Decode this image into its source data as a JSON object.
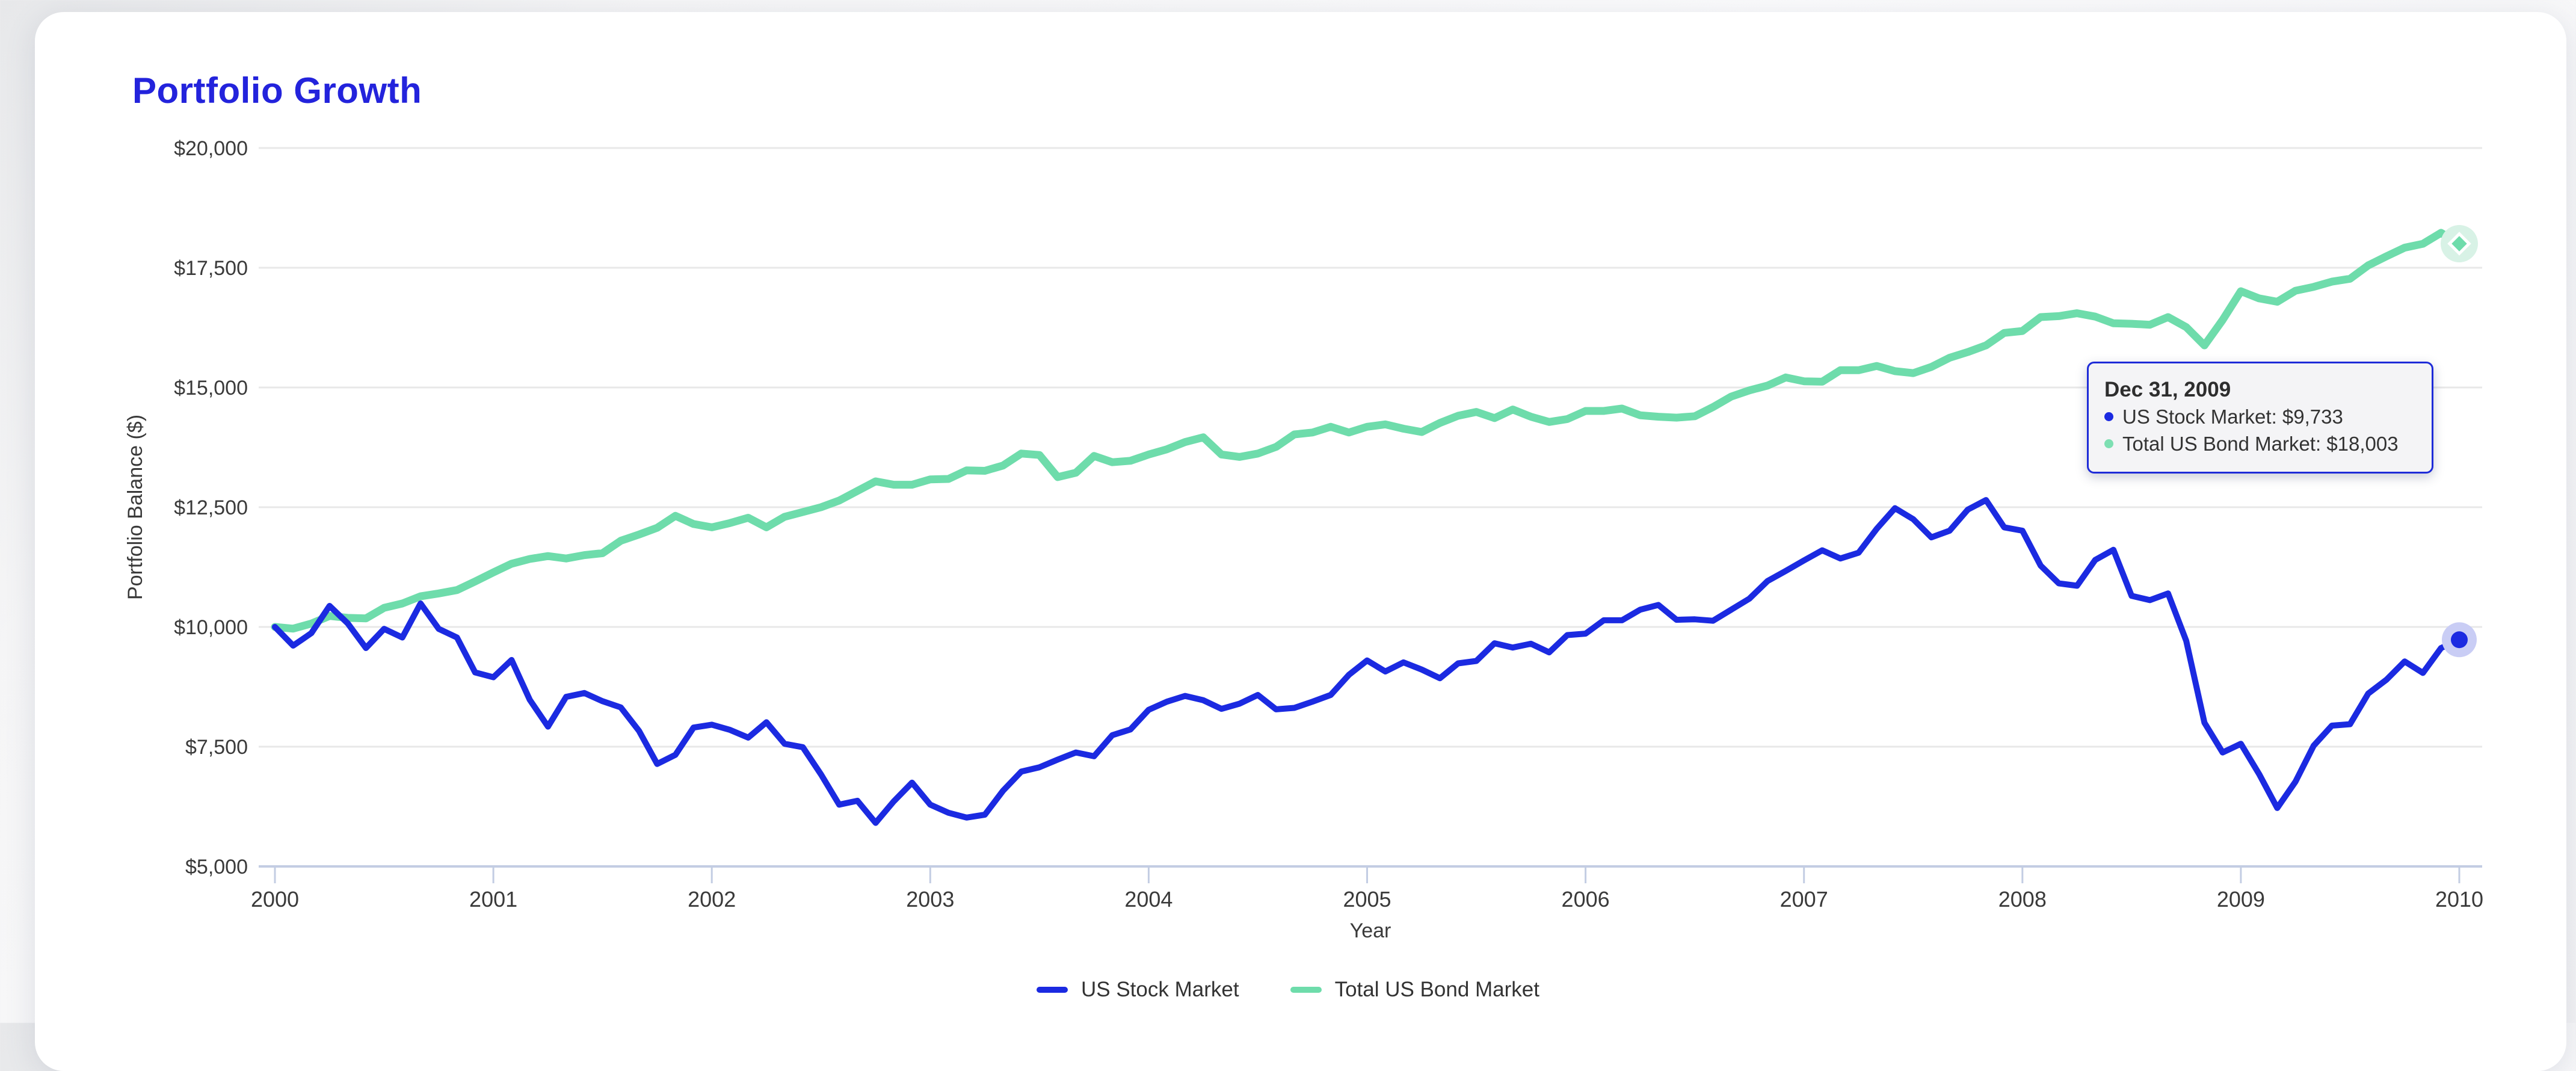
{
  "page": {
    "title": "Portfolio Growth"
  },
  "colors": {
    "title_blue": "#2323dc",
    "stock_blue": "#1b2ae1",
    "bond_green": "#6edcab",
    "halo_blue": "#c9cdf5",
    "halo_green": "#d8f2e6",
    "tooltip_border": "#1e2bd8",
    "axis_line": "#c3cde3",
    "gridline": "#e8e8e8",
    "text_dark": "#3a3a3a"
  },
  "chart_data": {
    "type": "line",
    "title": "Portfolio Growth",
    "xlabel": "Year",
    "ylabel": "Portfolio Balance ($)",
    "grid": true,
    "legend_position": "bottom",
    "x_range": [
      2000,
      2010
    ],
    "y_range": [
      5000,
      20000
    ],
    "x_start_year": 2000,
    "x_step_months": 1,
    "x_ticks": [
      {
        "value": 2000,
        "label": "2000"
      },
      {
        "value": 2001,
        "label": "2001"
      },
      {
        "value": 2002,
        "label": "2002"
      },
      {
        "value": 2003,
        "label": "2003"
      },
      {
        "value": 2004,
        "label": "2004"
      },
      {
        "value": 2005,
        "label": "2005"
      },
      {
        "value": 2006,
        "label": "2006"
      },
      {
        "value": 2007,
        "label": "2007"
      },
      {
        "value": 2008,
        "label": "2008"
      },
      {
        "value": 2009,
        "label": "2009"
      },
      {
        "value": 2010,
        "label": "2010"
      }
    ],
    "y_ticks": [
      {
        "value": 20000,
        "label": "$20,000"
      },
      {
        "value": 17500,
        "label": "$17,500"
      },
      {
        "value": 15000,
        "label": "$15,000"
      },
      {
        "value": 12500,
        "label": "$12,500"
      },
      {
        "value": 10000,
        "label": "$10,000"
      },
      {
        "value": 7500,
        "label": "$7,500"
      },
      {
        "value": 5000,
        "label": "$5,000"
      }
    ],
    "series": [
      {
        "name": "US Stock Market",
        "color": "#1b2ae1",
        "marker": "circle",
        "line_width": 10,
        "values": [
          10000,
          9610,
          9870,
          10440,
          10075,
          9560,
          9960,
          9780,
          10490,
          9960,
          9780,
          9050,
          8950,
          9310,
          8480,
          7920,
          8540,
          8620,
          8450,
          8320,
          7830,
          7140,
          7330,
          7900,
          7960,
          7850,
          7690,
          8010,
          7560,
          7490,
          6920,
          6290,
          6370,
          5910,
          6360,
          6750,
          6290,
          6120,
          6020,
          6080,
          6580,
          6980,
          7070,
          7230,
          7380,
          7300,
          7740,
          7860,
          8270,
          8440,
          8560,
          8470,
          8290,
          8400,
          8580,
          8280,
          8310,
          8440,
          8580,
          9000,
          9300,
          9070,
          9260,
          9110,
          8930,
          9240,
          9290,
          9660,
          9570,
          9650,
          9470,
          9830,
          9860,
          10140,
          10140,
          10360,
          10460,
          10150,
          10160,
          10130,
          10360,
          10590,
          10960,
          11170,
          11390,
          11600,
          11430,
          11550,
          12050,
          12480,
          12250,
          11870,
          12010,
          12450,
          12650,
          12080,
          12010,
          11280,
          10910,
          10860,
          11400,
          11610,
          10650,
          10560,
          10700,
          9710,
          8000,
          7380,
          7560,
          6930,
          6220,
          6770,
          7520,
          7940,
          7970,
          8610,
          8900,
          9280,
          9040,
          9560,
          9733
        ]
      },
      {
        "name": "Total US Bond Market",
        "color": "#6edcab",
        "marker": "diamond",
        "line_width": 13,
        "values": [
          10000,
          9965,
          10070,
          10230,
          10190,
          10180,
          10400,
          10490,
          10640,
          10700,
          10770,
          10950,
          11140,
          11320,
          11420,
          11480,
          11430,
          11500,
          11540,
          11800,
          11930,
          12070,
          12320,
          12150,
          12080,
          12170,
          12280,
          12080,
          12300,
          12400,
          12500,
          12640,
          12840,
          13040,
          12970,
          12970,
          13080,
          13090,
          13270,
          13260,
          13370,
          13620,
          13590,
          13130,
          13220,
          13570,
          13440,
          13470,
          13600,
          13710,
          13860,
          13960,
          13600,
          13550,
          13620,
          13760,
          14020,
          14060,
          14180,
          14060,
          14180,
          14230,
          14140,
          14070,
          14260,
          14410,
          14490,
          14360,
          14540,
          14390,
          14280,
          14340,
          14510,
          14510,
          14560,
          14420,
          14390,
          14370,
          14400,
          14590,
          14810,
          14940,
          15040,
          15210,
          15130,
          15120,
          15360,
          15360,
          15450,
          15340,
          15300,
          15430,
          15620,
          15740,
          15880,
          16140,
          16180,
          16470,
          16490,
          16550,
          16480,
          16340,
          16330,
          16310,
          16470,
          16260,
          15880,
          16410,
          17010,
          16860,
          16790,
          17020,
          17100,
          17210,
          17270,
          17550,
          17740,
          17920,
          18000,
          18230,
          18003
        ]
      }
    ]
  },
  "tooltip": {
    "title": "Dec 31, 2009",
    "items": [
      {
        "label": "US Stock Market",
        "value": "$9,733",
        "color": "#1b2ae1"
      },
      {
        "label": "Total US Bond Market",
        "value": "$18,003",
        "color": "#7ddfb2"
      }
    ]
  },
  "legend": {
    "items": [
      {
        "label": "US Stock Market",
        "color": "#1b2ae1"
      },
      {
        "label": "Total US Bond Market",
        "color": "#6edcab"
      }
    ]
  }
}
